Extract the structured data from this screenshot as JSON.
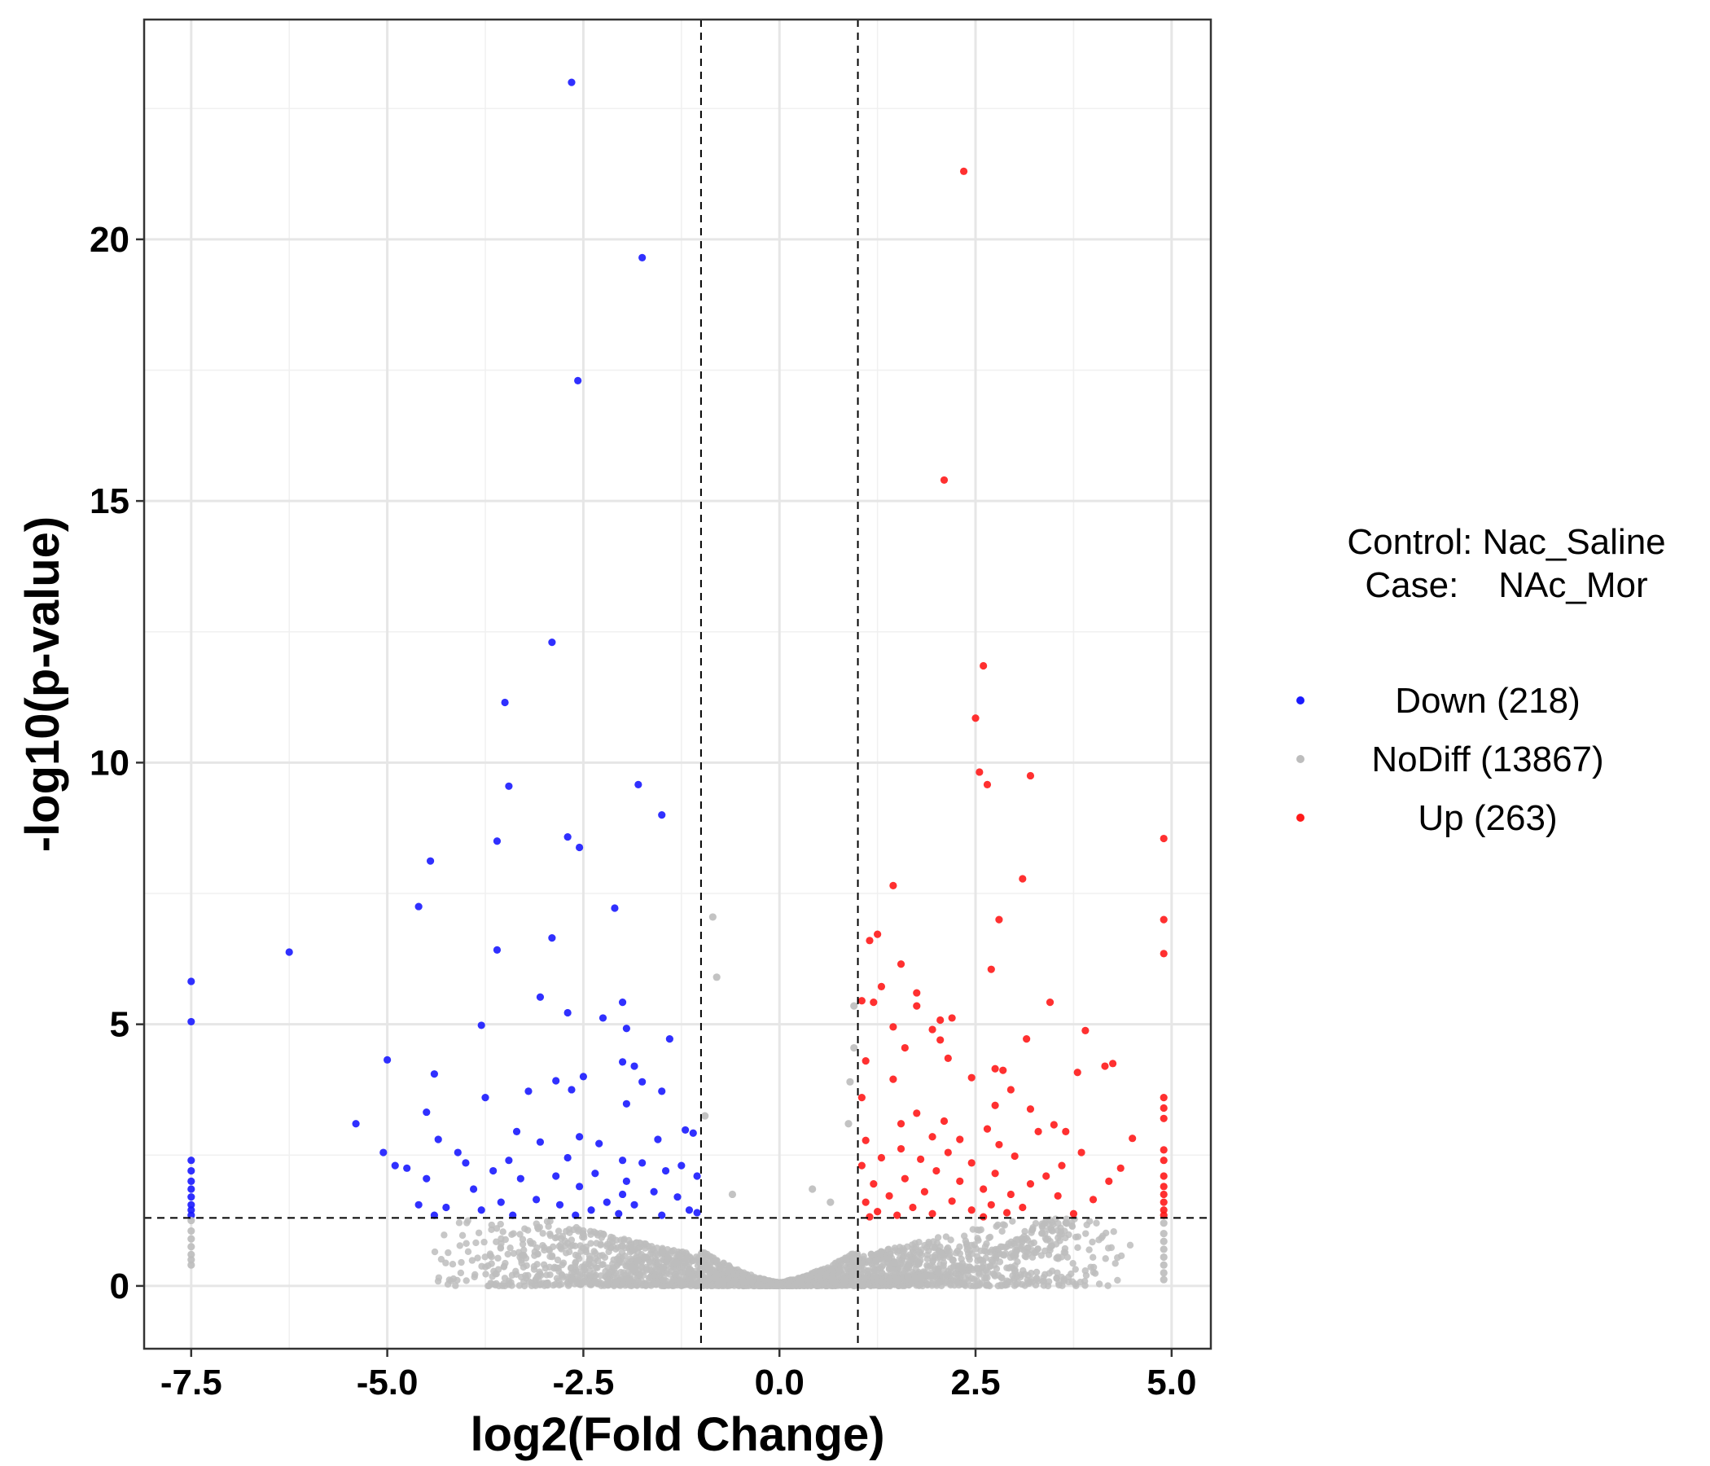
{
  "chart_data": {
    "type": "scatter",
    "xlabel": "log2(Fold Change)",
    "ylabel": "-log10(p-value)",
    "xlim": [
      -8.1,
      5.5
    ],
    "ylim": [
      -1.2,
      24.2
    ],
    "x_ticks": [
      {
        "value": -7.5,
        "label": "-7.5"
      },
      {
        "value": -5.0,
        "label": "-5.0"
      },
      {
        "value": -2.5,
        "label": "-2.5"
      },
      {
        "value": 0.0,
        "label": "0.0"
      },
      {
        "value": 2.5,
        "label": "2.5"
      },
      {
        "value": 5.0,
        "label": "5.0"
      }
    ],
    "y_ticks": [
      {
        "value": 0,
        "label": "0"
      },
      {
        "value": 5,
        "label": "5"
      },
      {
        "value": 10,
        "label": "10"
      },
      {
        "value": 15,
        "label": "15"
      },
      {
        "value": 20,
        "label": "20"
      }
    ],
    "thresholds": {
      "log2fc": [
        -1,
        1
      ],
      "neg_log10_p": 1.3
    },
    "grid": true,
    "legend": {
      "placement": "right",
      "title_lines": [
        "Control: Nac_Saline",
        "Case:    NAc_Mor"
      ]
    },
    "series": [
      {
        "name": "Down (218)",
        "color": "#1a1aff",
        "points": [
          [
            -2.65,
            23.0
          ],
          [
            -1.75,
            19.65
          ],
          [
            -2.57,
            17.3
          ],
          [
            -2.9,
            12.3
          ],
          [
            -3.5,
            11.15
          ],
          [
            -3.45,
            9.55
          ],
          [
            -1.8,
            9.58
          ],
          [
            -1.5,
            9.0
          ],
          [
            -2.7,
            8.58
          ],
          [
            -3.6,
            8.5
          ],
          [
            -2.55,
            8.38
          ],
          [
            -4.45,
            8.12
          ],
          [
            -4.6,
            7.25
          ],
          [
            -2.1,
            7.22
          ],
          [
            -2.9,
            6.65
          ],
          [
            -3.6,
            6.42
          ],
          [
            -6.25,
            6.38
          ],
          [
            -7.5,
            5.82
          ],
          [
            -3.05,
            5.52
          ],
          [
            -2.7,
            5.22
          ],
          [
            -2.0,
            5.42
          ],
          [
            -2.25,
            5.12
          ],
          [
            -7.5,
            5.05
          ],
          [
            -3.8,
            4.98
          ],
          [
            -1.95,
            4.92
          ],
          [
            -1.4,
            4.72
          ],
          [
            -5.0,
            4.32
          ],
          [
            -2.0,
            4.28
          ],
          [
            -1.85,
            4.2
          ],
          [
            -4.4,
            4.05
          ],
          [
            -2.5,
            4.0
          ],
          [
            -2.85,
            3.92
          ],
          [
            -1.75,
            3.9
          ],
          [
            -2.65,
            3.75
          ],
          [
            -1.5,
            3.72
          ],
          [
            -3.2,
            3.72
          ],
          [
            -1.95,
            3.48
          ],
          [
            -3.75,
            3.6
          ],
          [
            -4.5,
            3.32
          ],
          [
            -5.4,
            3.1
          ],
          [
            -3.35,
            2.95
          ],
          [
            -2.55,
            2.85
          ],
          [
            -1.2,
            2.98
          ],
          [
            -1.1,
            2.92
          ],
          [
            -4.35,
            2.8
          ],
          [
            -3.05,
            2.75
          ],
          [
            -2.3,
            2.72
          ],
          [
            -1.55,
            2.8
          ],
          [
            -5.05,
            2.55
          ],
          [
            -4.1,
            2.55
          ],
          [
            -2.7,
            2.45
          ],
          [
            -2.0,
            2.4
          ],
          [
            -4.9,
            2.3
          ],
          [
            -4.0,
            2.35
          ],
          [
            -3.45,
            2.4
          ],
          [
            -1.75,
            2.35
          ],
          [
            -1.25,
            2.3
          ],
          [
            -4.75,
            2.25
          ],
          [
            -3.65,
            2.2
          ],
          [
            -2.35,
            2.15
          ],
          [
            -1.45,
            2.2
          ],
          [
            -4.5,
            2.05
          ],
          [
            -3.3,
            2.05
          ],
          [
            -2.85,
            2.1
          ],
          [
            -1.95,
            2.0
          ],
          [
            -1.05,
            2.1
          ],
          [
            -3.9,
            1.85
          ],
          [
            -2.55,
            1.9
          ],
          [
            -2.0,
            1.75
          ],
          [
            -1.6,
            1.8
          ],
          [
            -3.1,
            1.65
          ],
          [
            -2.2,
            1.6
          ],
          [
            -1.3,
            1.7
          ],
          [
            -4.6,
            1.55
          ],
          [
            -3.55,
            1.6
          ],
          [
            -2.8,
            1.55
          ],
          [
            -1.85,
            1.55
          ],
          [
            -4.25,
            1.5
          ],
          [
            -3.8,
            1.45
          ],
          [
            -2.4,
            1.45
          ],
          [
            -1.15,
            1.45
          ],
          [
            -3.4,
            1.35
          ],
          [
            -2.6,
            1.35
          ],
          [
            -2.05,
            1.38
          ],
          [
            -1.5,
            1.35
          ],
          [
            -4.4,
            1.35
          ],
          [
            -1.05,
            1.4
          ],
          [
            -7.5,
            2.4
          ],
          [
            -7.5,
            2.2
          ],
          [
            -7.5,
            2.0
          ],
          [
            -7.5,
            1.85
          ],
          [
            -7.5,
            1.7
          ],
          [
            -7.5,
            1.55
          ],
          [
            -7.5,
            1.45
          ],
          [
            -7.5,
            1.35
          ]
        ]
      },
      {
        "name": "NoDiff (13867)",
        "color": "#bdbdbd",
        "points": [
          [
            -0.85,
            7.05
          ],
          [
            -0.8,
            5.9
          ],
          [
            0.95,
            5.35
          ],
          [
            0.95,
            4.55
          ],
          [
            0.9,
            3.9
          ],
          [
            -0.95,
            3.25
          ],
          [
            0.88,
            3.1
          ],
          [
            -0.6,
            1.75
          ],
          [
            0.42,
            1.85
          ],
          [
            0.65,
            1.6
          ],
          [
            -7.5,
            1.25
          ],
          [
            -7.5,
            1.05
          ],
          [
            -7.5,
            0.9
          ],
          [
            -7.5,
            0.75
          ],
          [
            -7.5,
            0.6
          ],
          [
            -7.5,
            0.5
          ],
          [
            -7.5,
            0.4
          ],
          [
            4.9,
            1.2
          ],
          [
            4.9,
            1.0
          ],
          [
            4.9,
            0.85
          ],
          [
            4.9,
            0.7
          ],
          [
            4.9,
            0.55
          ],
          [
            4.9,
            0.4
          ],
          [
            4.9,
            0.25
          ],
          [
            4.9,
            0.12
          ]
        ]
      },
      {
        "name": "Up (263)",
        "color": "#ff1a1a",
        "points": [
          [
            2.35,
            21.3
          ],
          [
            2.1,
            15.4
          ],
          [
            2.6,
            11.85
          ],
          [
            2.5,
            10.85
          ],
          [
            2.55,
            9.82
          ],
          [
            2.65,
            9.58
          ],
          [
            3.2,
            9.75
          ],
          [
            4.9,
            8.55
          ],
          [
            3.1,
            7.78
          ],
          [
            1.45,
            7.65
          ],
          [
            2.8,
            7.0
          ],
          [
            4.9,
            7.0
          ],
          [
            1.25,
            6.72
          ],
          [
            1.15,
            6.6
          ],
          [
            4.9,
            6.35
          ],
          [
            1.55,
            6.15
          ],
          [
            2.7,
            6.05
          ],
          [
            1.3,
            5.72
          ],
          [
            1.75,
            5.6
          ],
          [
            1.2,
            5.42
          ],
          [
            1.05,
            5.45
          ],
          [
            1.75,
            5.35
          ],
          [
            3.45,
            5.42
          ],
          [
            2.2,
            5.12
          ],
          [
            2.05,
            5.08
          ],
          [
            1.45,
            4.95
          ],
          [
            1.95,
            4.9
          ],
          [
            3.9,
            4.88
          ],
          [
            2.05,
            4.7
          ],
          [
            3.15,
            4.72
          ],
          [
            1.6,
            4.55
          ],
          [
            2.15,
            4.35
          ],
          [
            1.1,
            4.3
          ],
          [
            4.25,
            4.25
          ],
          [
            4.15,
            4.2
          ],
          [
            2.75,
            4.15
          ],
          [
            2.85,
            4.12
          ],
          [
            3.8,
            4.08
          ],
          [
            2.45,
            3.98
          ],
          [
            1.45,
            3.95
          ],
          [
            2.95,
            3.75
          ],
          [
            4.9,
            3.6
          ],
          [
            1.05,
            3.6
          ],
          [
            2.75,
            3.45
          ],
          [
            3.2,
            3.38
          ],
          [
            1.75,
            3.3
          ],
          [
            4.9,
            3.4
          ],
          [
            2.1,
            3.15
          ],
          [
            1.55,
            3.1
          ],
          [
            3.5,
            3.08
          ],
          [
            2.65,
            3.0
          ],
          [
            4.9,
            3.2
          ],
          [
            3.3,
            2.95
          ],
          [
            3.65,
            2.95
          ],
          [
            1.95,
            2.85
          ],
          [
            2.3,
            2.8
          ],
          [
            1.1,
            2.78
          ],
          [
            2.8,
            2.7
          ],
          [
            4.5,
            2.82
          ],
          [
            1.55,
            2.62
          ],
          [
            4.9,
            2.6
          ],
          [
            2.15,
            2.55
          ],
          [
            3.0,
            2.48
          ],
          [
            3.85,
            2.55
          ],
          [
            1.3,
            2.45
          ],
          [
            1.8,
            2.42
          ],
          [
            2.45,
            2.35
          ],
          [
            3.6,
            2.3
          ],
          [
            4.9,
            2.4
          ],
          [
            1.05,
            2.3
          ],
          [
            2.0,
            2.2
          ],
          [
            2.75,
            2.15
          ],
          [
            4.35,
            2.25
          ],
          [
            3.4,
            2.1
          ],
          [
            1.6,
            2.05
          ],
          [
            4.9,
            2.1
          ],
          [
            2.3,
            2.0
          ],
          [
            1.2,
            1.95
          ],
          [
            3.2,
            1.95
          ],
          [
            2.6,
            1.85
          ],
          [
            4.2,
            2.0
          ],
          [
            1.85,
            1.8
          ],
          [
            4.9,
            1.9
          ],
          [
            2.95,
            1.75
          ],
          [
            1.4,
            1.72
          ],
          [
            3.55,
            1.72
          ],
          [
            2.2,
            1.62
          ],
          [
            1.1,
            1.6
          ],
          [
            2.7,
            1.55
          ],
          [
            4.0,
            1.65
          ],
          [
            4.9,
            1.75
          ],
          [
            1.7,
            1.5
          ],
          [
            3.1,
            1.5
          ],
          [
            2.45,
            1.45
          ],
          [
            1.25,
            1.42
          ],
          [
            2.9,
            1.4
          ],
          [
            4.9,
            1.6
          ],
          [
            1.95,
            1.38
          ],
          [
            3.75,
            1.38
          ],
          [
            1.5,
            1.35
          ],
          [
            4.9,
            1.45
          ],
          [
            2.6,
            1.32
          ],
          [
            1.15,
            1.32
          ],
          [
            4.9,
            1.35
          ]
        ]
      }
    ]
  }
}
